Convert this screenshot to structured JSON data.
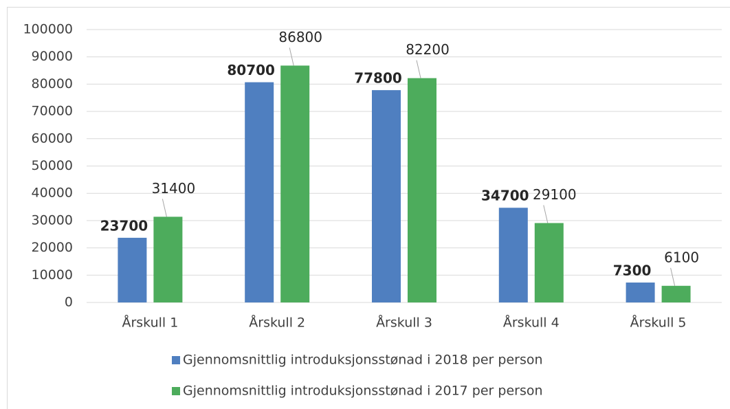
{
  "chart_data": {
    "type": "bar",
    "categories": [
      "Årskull 1",
      "Årskull 2",
      "Årskull 3",
      "Årskull 4",
      "Årskull 5"
    ],
    "series": [
      {
        "name": "Gjennomsnittlig introduksjonsstønad i 2018 per person",
        "color": "#4f7fc0",
        "values": [
          23700,
          80700,
          77800,
          34700,
          7300
        ]
      },
      {
        "name": "Gjennomsnittlig introduksjonsstønad i 2017 per person",
        "color": "#4dac5c",
        "values": [
          31400,
          86800,
          82200,
          29100,
          6100
        ]
      }
    ],
    "ylim": [
      0,
      100000
    ],
    "yticks": [
      0,
      10000,
      20000,
      30000,
      40000,
      50000,
      60000,
      70000,
      80000,
      90000,
      100000
    ],
    "grid": true,
    "legend": "bottom"
  }
}
